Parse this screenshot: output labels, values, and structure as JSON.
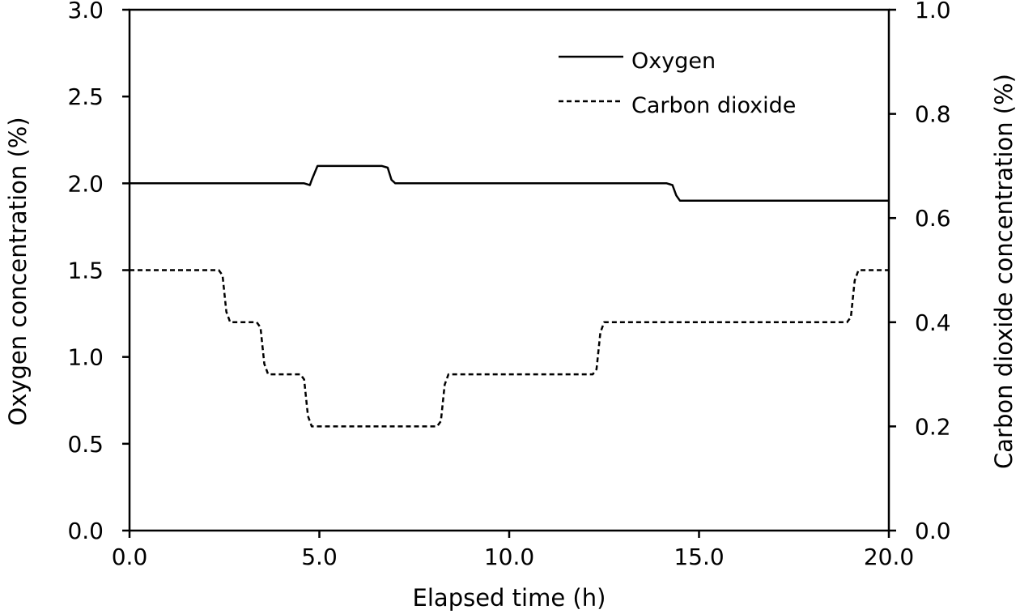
{
  "chart_data": {
    "type": "line",
    "xlabel": "Elapsed time (h)",
    "ylabel": "Oxygen concentration (%)",
    "y2label": "Carbon dioxide concentration (%)",
    "xlim": [
      0,
      20
    ],
    "ylim": [
      0,
      3.0
    ],
    "y2lim": [
      0,
      1.0
    ],
    "x_ticks": [
      "0.0",
      "5.0",
      "10.0",
      "15.0",
      "20.0"
    ],
    "y_ticks": [
      "0.0",
      "0.5",
      "1.0",
      "1.5",
      "2.0",
      "2.5",
      "3.0"
    ],
    "y2_ticks": [
      "0.0",
      "0.2",
      "0.4",
      "0.6",
      "0.8",
      "1.0"
    ],
    "grid": false,
    "legend_position": "top-right",
    "series": [
      {
        "name": "Oxygen",
        "axis": "left",
        "style": "solid",
        "color": "#000000",
        "x": [
          0,
          4.6,
          4.75,
          4.8,
          4.95,
          6.65,
          6.8,
          6.9,
          7.0,
          14.15,
          14.3,
          14.4,
          14.5,
          20.0
        ],
        "y": [
          2.0,
          2.0,
          1.99,
          2.02,
          2.1,
          2.1,
          2.09,
          2.02,
          2.0,
          2.0,
          1.99,
          1.93,
          1.9,
          1.9
        ]
      },
      {
        "name": "Carbon dioxide",
        "axis": "right",
        "style": "dashed",
        "color": "#000000",
        "x": [
          0,
          2.35,
          2.45,
          2.55,
          2.65,
          3.35,
          3.45,
          3.55,
          3.65,
          4.5,
          4.6,
          4.7,
          4.8,
          8.1,
          8.2,
          8.3,
          8.4,
          12.2,
          12.3,
          12.4,
          12.5,
          18.9,
          19.0,
          19.1,
          19.2,
          20.0
        ],
        "y": [
          0.5,
          0.5,
          0.49,
          0.42,
          0.4,
          0.4,
          0.39,
          0.32,
          0.3,
          0.3,
          0.29,
          0.22,
          0.2,
          0.2,
          0.21,
          0.28,
          0.3,
          0.3,
          0.31,
          0.38,
          0.4,
          0.4,
          0.41,
          0.48,
          0.5,
          0.5
        ]
      }
    ]
  }
}
